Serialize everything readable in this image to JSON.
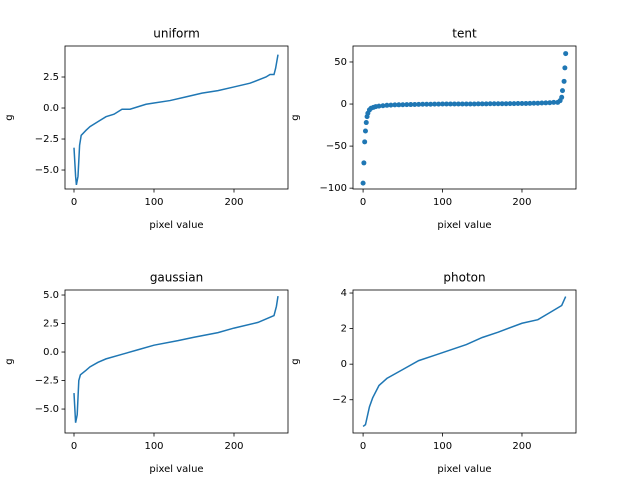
{
  "chart_data": [
    {
      "type": "line",
      "title": "uniform",
      "xlabel": "pixel value",
      "ylabel": "g",
      "color": "#1f77b4",
      "x": [
        0,
        2,
        3,
        5,
        7,
        9,
        15,
        20,
        30,
        40,
        50,
        60,
        70,
        80,
        90,
        100,
        120,
        140,
        160,
        180,
        200,
        220,
        240,
        245,
        250,
        252,
        255
      ],
      "values": [
        -3.2,
        -5.5,
        -6.2,
        -5.5,
        -3.0,
        -2.2,
        -1.8,
        -1.5,
        -1.1,
        -0.7,
        -0.5,
        -0.1,
        -0.1,
        0.1,
        0.3,
        0.4,
        0.6,
        0.9,
        1.2,
        1.4,
        1.7,
        2.0,
        2.5,
        2.7,
        2.7,
        3.2,
        4.3
      ],
      "xlim": [
        -11.25,
        267.5
      ],
      "ylim": [
        -6.53,
        5.0
      ],
      "xticks": [
        0,
        100,
        200
      ],
      "yticks": [
        {
          "value": -5,
          "label": "−5.0"
        },
        {
          "value": -2.5,
          "label": "−2.5"
        },
        {
          "value": 0,
          "label": "0.0"
        },
        {
          "value": 2.5,
          "label": "2.5"
        }
      ]
    },
    {
      "type": "scatter",
      "title": "tent",
      "xlabel": "pixel value",
      "ylabel": "g",
      "color": "#1f77b4",
      "x": [
        0,
        1,
        2,
        3,
        4,
        5,
        6,
        8,
        10,
        13,
        16,
        20,
        25,
        30,
        35,
        40,
        45,
        50,
        55,
        60,
        65,
        70,
        75,
        80,
        85,
        90,
        95,
        100,
        105,
        110,
        115,
        120,
        125,
        130,
        135,
        140,
        145,
        150,
        155,
        160,
        165,
        170,
        175,
        180,
        185,
        190,
        195,
        200,
        205,
        210,
        215,
        220,
        225,
        230,
        235,
        240,
        245,
        248,
        250,
        251,
        253,
        254,
        255
      ],
      "values": [
        -94,
        -70,
        -45,
        -32,
        -22,
        -15,
        -11,
        -7,
        -5,
        -4,
        -3,
        -2.5,
        -2,
        -1.5,
        -1.3,
        -1,
        -0.9,
        -0.8,
        -0.7,
        -0.6,
        -0.5,
        -0.4,
        -0.3,
        -0.2,
        -0.2,
        -0.1,
        -0.1,
        0,
        0,
        0,
        0,
        0,
        0,
        0.1,
        0.1,
        0.1,
        0.2,
        0.2,
        0.2,
        0.3,
        0.3,
        0.3,
        0.4,
        0.4,
        0.5,
        0.5,
        0.6,
        0.6,
        0.7,
        0.8,
        0.9,
        1.0,
        1.2,
        1.4,
        1.6,
        2,
        2,
        4,
        8,
        16,
        27,
        43,
        60
      ],
      "xlim": [
        -12.7,
        268
      ],
      "ylim": [
        -101,
        69
      ],
      "xticks": [
        0,
        100,
        200
      ],
      "yticks": [
        {
          "value": -100,
          "label": "−100"
        },
        {
          "value": -50,
          "label": "−50"
        },
        0,
        50
      ]
    },
    {
      "type": "line",
      "title": "gaussian",
      "xlabel": "pixel value",
      "ylabel": "g",
      "color": "#1f77b4",
      "x": [
        0,
        2,
        4,
        6,
        8,
        15,
        20,
        30,
        40,
        60,
        80,
        100,
        130,
        150,
        180,
        200,
        230,
        250,
        253,
        255
      ],
      "values": [
        -3.6,
        -6.2,
        -5.5,
        -2.5,
        -2.0,
        -1.6,
        -1.3,
        -0.9,
        -0.6,
        -0.2,
        0.2,
        0.6,
        1.0,
        1.3,
        1.7,
        2.1,
        2.6,
        3.2,
        4.0,
        4.9
      ],
      "xlim": [
        -11.25,
        267.5
      ],
      "ylim": [
        -7.1,
        5.44
      ],
      "xticks": [
        0,
        100,
        200
      ],
      "yticks": [
        {
          "value": -5,
          "label": "−5.0"
        },
        {
          "value": -2.5,
          "label": "−2.5"
        },
        {
          "value": 0,
          "label": "0.0"
        },
        {
          "value": 2.5,
          "label": "2.5"
        },
        {
          "value": 5,
          "label": "5.0"
        }
      ]
    },
    {
      "type": "line",
      "title": "photon",
      "xlabel": "pixel value",
      "ylabel": "g",
      "color": "#1f77b4",
      "x": [
        0,
        3,
        8,
        12,
        20,
        30,
        50,
        70,
        90,
        110,
        130,
        150,
        170,
        200,
        220,
        235,
        250,
        255
      ],
      "values": [
        -3.5,
        -3.4,
        -2.4,
        -1.9,
        -1.2,
        -0.8,
        -0.3,
        0.2,
        0.5,
        0.8,
        1.1,
        1.5,
        1.8,
        2.3,
        2.5,
        2.9,
        3.3,
        3.8
      ],
      "xlim": [
        -12.7,
        268
      ],
      "ylim": [
        -3.87,
        4.17
      ],
      "xticks": [
        0,
        100,
        200
      ],
      "yticks": [
        {
          "value": -2,
          "label": "−2"
        },
        0,
        2,
        4
      ]
    }
  ]
}
